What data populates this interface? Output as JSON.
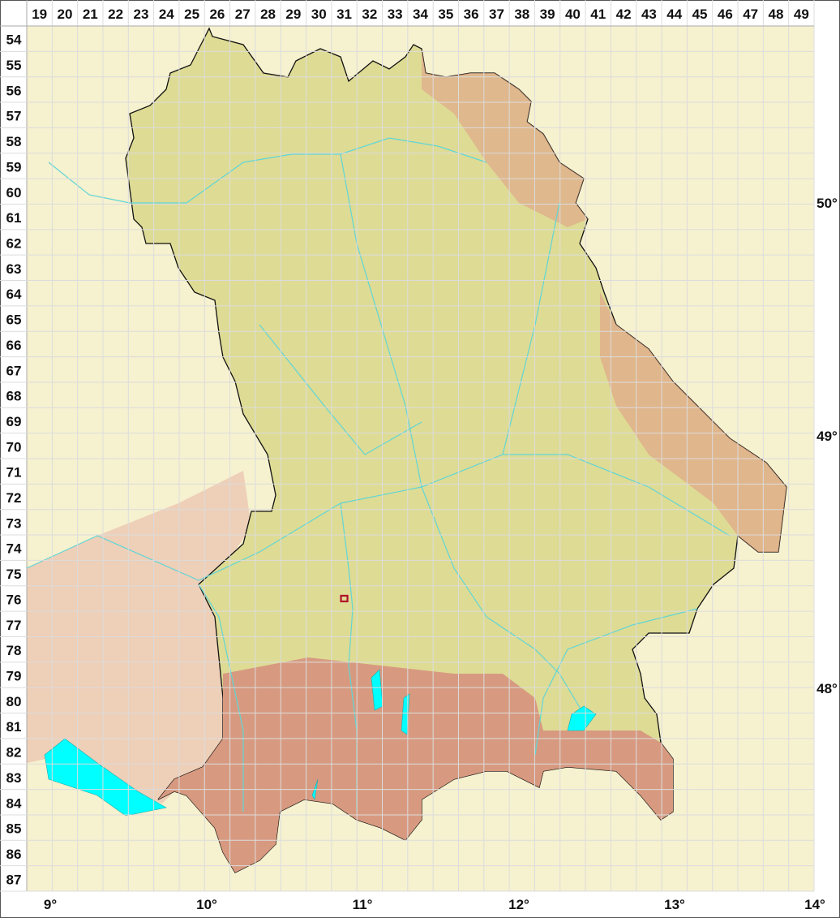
{
  "map": {
    "column_labels": [
      "19",
      "20",
      "21",
      "22",
      "23",
      "24",
      "25",
      "26",
      "27",
      "28",
      "29",
      "30",
      "31",
      "32",
      "33",
      "34",
      "35",
      "36",
      "37",
      "38",
      "39",
      "40",
      "41",
      "42",
      "43",
      "44",
      "45",
      "46",
      "47",
      "48",
      "49"
    ],
    "row_labels": [
      "54",
      "55",
      "56",
      "57",
      "58",
      "59",
      "60",
      "61",
      "62",
      "63",
      "64",
      "65",
      "66",
      "67",
      "68",
      "69",
      "70",
      "71",
      "72",
      "73",
      "74",
      "75",
      "76",
      "77",
      "78",
      "79",
      "80",
      "81",
      "82",
      "83",
      "84",
      "85",
      "86",
      "87"
    ],
    "longitude_labels": [
      "9°",
      "10°",
      "11°",
      "12°",
      "13°",
      "14°"
    ],
    "latitude_labels": [
      "50°",
      "49°",
      "48°"
    ],
    "marker": {
      "column": "31",
      "row": "76",
      "color": "#b0102a"
    },
    "colors": {
      "background": "#fbf9e8",
      "lowland": "#dcd98a",
      "upland": "#e8c9a8",
      "mountain": "#d9967e",
      "water": "#00ffff",
      "river": "#5fd6d6",
      "grid": "#e4e4e4",
      "border": "#111111"
    }
  }
}
